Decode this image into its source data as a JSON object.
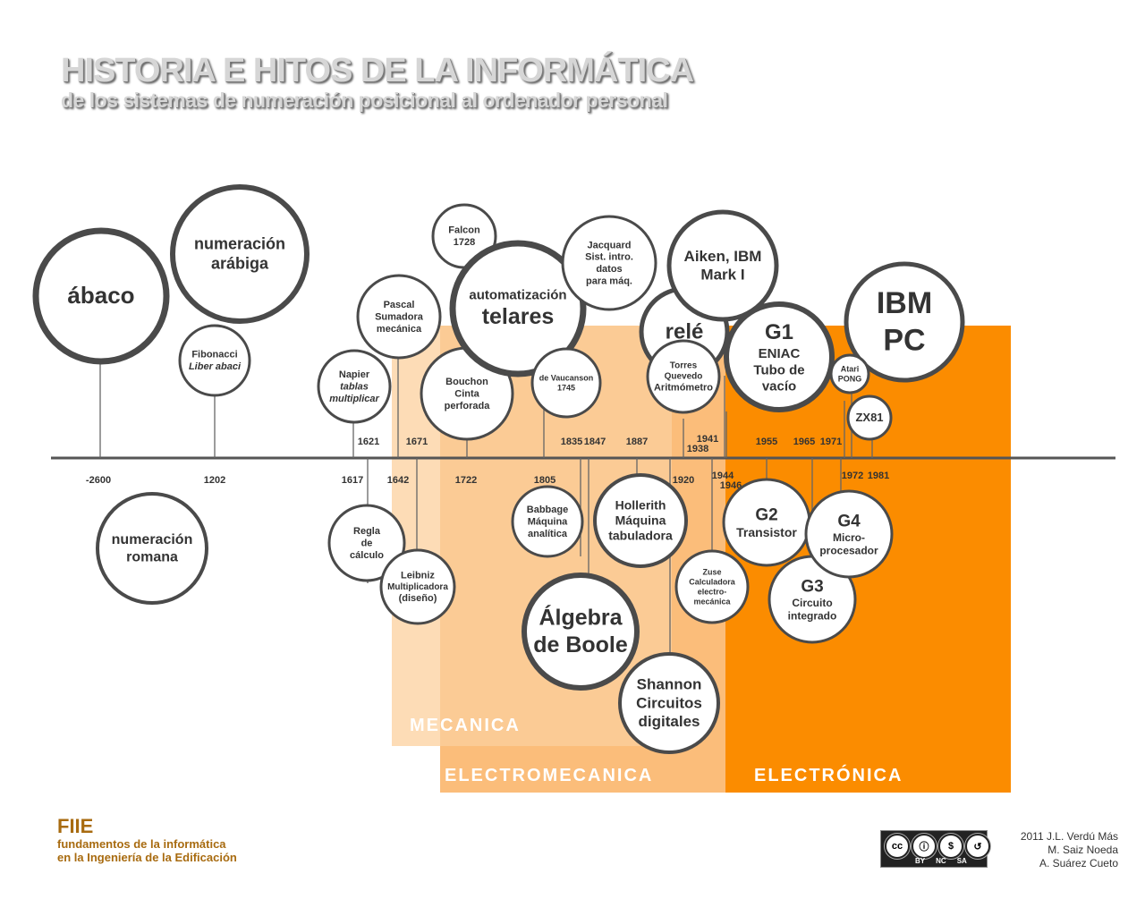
{
  "title": "HISTORIA E HITOS DE LA INFORMÁTICA",
  "subtitle": "de los sistemas de numeración posicional al ordenador personal",
  "eras": [
    {
      "key": "mecanica",
      "label": "MECANICA",
      "color": "#fddcb6"
    },
    {
      "key": "electromecanica",
      "label": "ELECTROMECANICA",
      "color": "#fbbd7a"
    },
    {
      "key": "electronica",
      "label": "ELECTRÓNICA",
      "color": "#fb8c00"
    }
  ],
  "years": [
    "-2600",
    "1202",
    "1617",
    "1621",
    "1642",
    "1671",
    "1722",
    "1805",
    "1835",
    "1847",
    "1887",
    "1920",
    "1938",
    "1941",
    "1944",
    "1946",
    "1955",
    "1965",
    "1971",
    "1972",
    "1981"
  ],
  "milestones": [
    {
      "id": "abaco",
      "lines": [
        "ábaco"
      ]
    },
    {
      "id": "numeracion-arabiga",
      "lines": [
        "numeración",
        "arábiga"
      ]
    },
    {
      "id": "fibonacci",
      "lines": [
        "Fibonacci",
        "Liber abaci"
      ]
    },
    {
      "id": "numeracion-romana",
      "lines": [
        "numeración",
        "romana"
      ]
    },
    {
      "id": "napier",
      "lines": [
        "Napier",
        "tablas",
        "multiplicar"
      ]
    },
    {
      "id": "pascal",
      "lines": [
        "Pascal",
        "Sumadora",
        "mecánica"
      ]
    },
    {
      "id": "regla",
      "lines": [
        "Regla",
        "de",
        "cálculo"
      ]
    },
    {
      "id": "leibniz",
      "lines": [
        "Leibniz",
        "Multiplicadora",
        "(diseño)"
      ]
    },
    {
      "id": "falcon",
      "lines": [
        "Falcon",
        "1728"
      ]
    },
    {
      "id": "bouchon",
      "lines": [
        "Bouchon",
        "Cinta",
        "perforada"
      ]
    },
    {
      "id": "telares",
      "lines": [
        "automatización",
        "telares"
      ]
    },
    {
      "id": "jacquard",
      "lines": [
        "Jacquard",
        "Sist. intro.",
        "datos",
        "para máq."
      ]
    },
    {
      "id": "vaucanson",
      "lines": [
        "de Vaucanson",
        "1745"
      ]
    },
    {
      "id": "babbage",
      "lines": [
        "Babbage",
        "Máquina",
        "analítica"
      ]
    },
    {
      "id": "boole",
      "lines": [
        "Álgebra",
        "de Boole"
      ]
    },
    {
      "id": "hollerith",
      "lines": [
        "Hollerith",
        "Máquina",
        "tabuladora"
      ]
    },
    {
      "id": "rele",
      "lines": [
        "relé"
      ]
    },
    {
      "id": "aiken",
      "lines": [
        "Aiken, IBM",
        "Mark I"
      ]
    },
    {
      "id": "torres",
      "lines": [
        "Torres",
        "Quevedo",
        "Aritmómetro"
      ]
    },
    {
      "id": "shannon",
      "lines": [
        "Shannon",
        "Circuitos",
        "digitales"
      ]
    },
    {
      "id": "zuse",
      "lines": [
        "Zuse",
        "Calculadora",
        "electro-",
        "mecánica"
      ]
    },
    {
      "id": "g1",
      "lines": [
        "G1",
        "ENIAC",
        "Tubo de",
        "vacío"
      ]
    },
    {
      "id": "ibm-pc",
      "lines": [
        "IBM",
        "PC"
      ]
    },
    {
      "id": "atari",
      "lines": [
        "Atari",
        "PONG"
      ]
    },
    {
      "id": "zx81",
      "lines": [
        "ZX81"
      ]
    },
    {
      "id": "g2",
      "lines": [
        "G2",
        "Transistor"
      ]
    },
    {
      "id": "g3",
      "lines": [
        "G3",
        "Circuito",
        "integrado"
      ]
    },
    {
      "id": "g4",
      "lines": [
        "G4",
        "Micro-",
        "procesador"
      ]
    }
  ],
  "footer": {
    "org_short": "FIIE",
    "org_line1": "fundamentos de la informática",
    "org_line2": "en la Ingeniería de la Edificación",
    "license": {
      "icons": [
        "cc",
        "by",
        "nc",
        "sa"
      ],
      "labels": [
        "BY",
        "NC",
        "SA"
      ]
    },
    "authors": [
      "2011 J.L. Verdú Más",
      "M. Saiz Noeda",
      "A. Suárez Cueto"
    ]
  }
}
